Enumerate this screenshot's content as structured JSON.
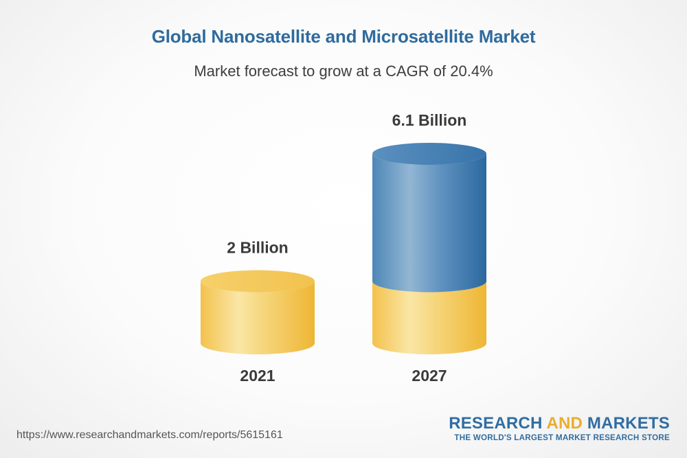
{
  "title": "Global Nanosatellite and Microsatellite Market",
  "subtitle": "Market forecast to grow at a CAGR of 20.4%",
  "chart_data": {
    "type": "bar",
    "style": "3d-cylinder",
    "categories": [
      "2021",
      "2027"
    ],
    "values": [
      2.0,
      6.1
    ],
    "value_labels": [
      "2 Billion",
      "6.1 Billion"
    ],
    "unit": "Billion",
    "cagr": "20.4%",
    "base_color": "#f2c14f",
    "growth_color": "#3b7db1",
    "ylim": [
      0,
      6.1
    ]
  },
  "footer": {
    "url": "https://www.researchandmarkets.com/reports/5615161",
    "brand_part1": "RESEARCH ",
    "brand_part2": "AND",
    "brand_part3": " MARKETS",
    "tagline": "THE WORLD'S LARGEST MARKET RESEARCH STORE"
  }
}
